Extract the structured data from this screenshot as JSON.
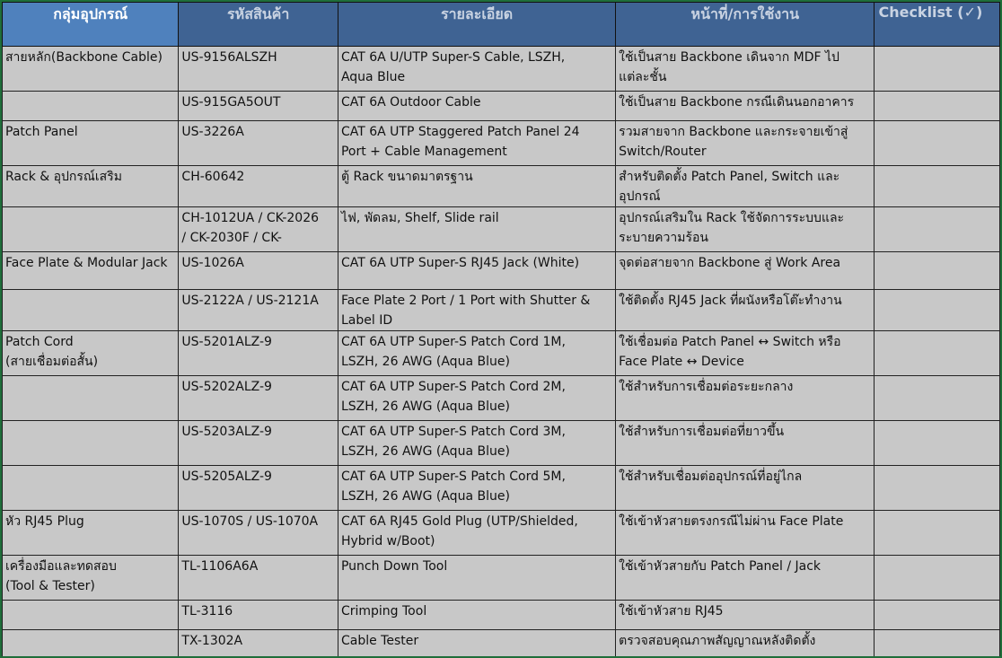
{
  "headers": [
    "กลุ่มอุปกรณ์",
    "รหัสสินค้า",
    "รายละเอียด",
    "หน้าที่/การใช้งาน",
    "Checklist (✓)"
  ],
  "rows": [
    {
      "group": "สายหลัก(Backbone Cable)",
      "code": "US-9156ALSZH",
      "detail": "CAT 6A U/UTP Super-S Cable, LSZH,\nAqua Blue",
      "usage": "ใช้เป็นสาย Backbone เดินจาก MDF ไป\nแต่ละชั้น",
      "check": ""
    },
    {
      "group": "",
      "code": "US-915GA5OUT",
      "detail": "CAT 6A Outdoor Cable",
      "usage": "ใช้เป็นสาย Backbone กรณีเดินนอกอาคาร",
      "check": ""
    },
    {
      "group": "Patch Panel",
      "code": "US-3226A",
      "detail": "CAT 6A UTP Staggered Patch Panel 24\nPort + Cable Management",
      "usage": "รวมสายจาก Backbone และกระจายเข้าสู่\n Switch/Router",
      "check": ""
    },
    {
      "group": "Rack & อุปกรณ์เสริม",
      "code": "CH-60642",
      "detail": "ตู้ Rack ขนาดมาตรฐาน",
      "usage": "สำหรับติดตั้ง Patch Panel, Switch และ\nอุปกรณ์",
      "check": ""
    },
    {
      "group": "",
      "code": "CH-1012UA / CK-2026\n/ CK-2030F / CK-",
      "detail": "ไฟ, พัดลม, Shelf, Slide rail",
      "usage": "อุปกรณ์เสริมใน Rack ใช้จัดการระบบและ\nระบายความร้อน",
      "check": ""
    },
    {
      "group": "Face Plate & Modular Jack",
      "code": "US-1026A",
      "detail": "CAT 6A UTP Super-S RJ45 Jack (White)",
      "usage": "จุดต่อสายจาก Backbone สู่ Work Area",
      "check": ""
    },
    {
      "group": "",
      "code": "US-2122A / US-2121A",
      "detail": "Face Plate 2 Port / 1 Port with Shutter &\nLabel ID",
      "usage": "ใช้ติดตั้ง RJ45 Jack ที่ผนังหรือโต๊ะทำงาน",
      "check": ""
    },
    {
      "group": "Patch Cord\n(สายเชื่อมต่อสั้น)",
      "code": "US-5201ALZ-9",
      "detail": "CAT 6A UTP Super-S Patch Cord 1M,\nLSZH, 26 AWG (Aqua Blue)",
      "usage": "ใช้เชื่อมต่อ Patch Panel ↔ Switch หรือ\n Face Plate ↔ Device",
      "check": ""
    },
    {
      "group": "",
      "code": "US-5202ALZ-9",
      "detail": "CAT 6A UTP Super-S Patch Cord 2M,\nLSZH, 26 AWG (Aqua Blue)",
      "usage": "ใช้สำหรับการเชื่อมต่อระยะกลาง",
      "check": ""
    },
    {
      "group": "",
      "code": "US-5203ALZ-9",
      "detail": "CAT 6A UTP Super-S Patch Cord 3M,\nLSZH, 26 AWG (Aqua Blue)",
      "usage": "ใช้สำหรับการเชื่อมต่อที่ยาวขึ้น",
      "check": ""
    },
    {
      "group": "",
      "code": "US-5205ALZ-9",
      "detail": "CAT 6A UTP Super-S Patch Cord 5M,\nLSZH, 26 AWG (Aqua Blue)",
      "usage": "ใช้สำหรับเชื่อมต่ออุปกรณ์ที่อยู่ไกล",
      "check": ""
    },
    {
      "group": "หัว RJ45 Plug",
      "code": "US-1070S / US-1070A",
      "detail": "CAT 6A RJ45 Gold Plug (UTP/Shielded,\nHybrid w/Boot)",
      "usage": "ใช้เข้าหัวสายตรงกรณีไม่ผ่าน Face Plate",
      "check": ""
    },
    {
      "group": "เครื่องมือและทดสอบ\n(Tool & Tester)",
      "code": "TL-1106A6A",
      "detail": "Punch Down Tool",
      "usage": "ใช้เข้าหัวสายกับ Patch Panel / Jack",
      "check": ""
    },
    {
      "group": "",
      "code": "TL-3116",
      "detail": "Crimping Tool",
      "usage": "ใช้เข้าหัวสาย RJ45",
      "check": ""
    },
    {
      "group": "",
      "code": "TX-1302A",
      "detail": "Cable Tester",
      "usage": "ตรวจสอบคุณภาพสัญญาณหลังติดตั้ง",
      "check": ""
    }
  ]
}
